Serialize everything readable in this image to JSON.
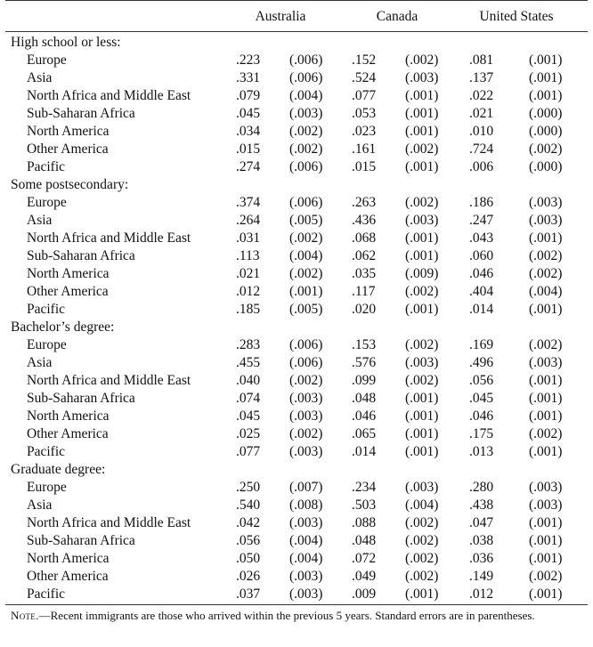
{
  "columns": [
    "Australia",
    "Canada",
    "United States"
  ],
  "groups": [
    {
      "title": "High school or less:",
      "rows": [
        {
          "region": "Europe",
          "values": [
            ".223",
            "(.006)",
            ".152",
            "(.002)",
            ".081",
            "(.001)"
          ]
        },
        {
          "region": "Asia",
          "values": [
            ".331",
            "(.006)",
            ".524",
            "(.003)",
            ".137",
            "(.001)"
          ]
        },
        {
          "region": "North Africa and Middle East",
          "values": [
            ".079",
            "(.004)",
            ".077",
            "(.001)",
            ".022",
            "(.001)"
          ]
        },
        {
          "region": "Sub-Saharan Africa",
          "values": [
            ".045",
            "(.003)",
            ".053",
            "(.001)",
            ".021",
            "(.000)"
          ]
        },
        {
          "region": "North America",
          "values": [
            ".034",
            "(.002)",
            ".023",
            "(.001)",
            ".010",
            "(.000)"
          ]
        },
        {
          "region": "Other America",
          "values": [
            ".015",
            "(.002)",
            ".161",
            "(.002)",
            ".724",
            "(.002)"
          ]
        },
        {
          "region": "Pacific",
          "values": [
            ".274",
            "(.006)",
            ".015",
            "(.001)",
            ".006",
            "(.000)"
          ]
        }
      ]
    },
    {
      "title": "Some postsecondary:",
      "rows": [
        {
          "region": "Europe",
          "values": [
            ".374",
            "(.006)",
            ".263",
            "(.002)",
            ".186",
            "(.003)"
          ]
        },
        {
          "region": "Asia",
          "values": [
            ".264",
            "(.005)",
            ".436",
            "(.003)",
            ".247",
            "(.003)"
          ]
        },
        {
          "region": "North Africa and Middle East",
          "values": [
            ".031",
            "(.002)",
            ".068",
            "(.001)",
            ".043",
            "(.001)"
          ]
        },
        {
          "region": "Sub-Saharan Africa",
          "values": [
            ".113",
            "(.004)",
            ".062",
            "(.001)",
            ".060",
            "(.002)"
          ]
        },
        {
          "region": "North America",
          "values": [
            ".021",
            "(.002)",
            ".035",
            "(.009)",
            ".046",
            "(.002)"
          ]
        },
        {
          "region": "Other America",
          "values": [
            ".012",
            "(.001)",
            ".117",
            "(.002)",
            ".404",
            "(.004)"
          ]
        },
        {
          "region": "Pacific",
          "values": [
            ".185",
            "(.005)",
            ".020",
            "(.001)",
            ".014",
            "(.001)"
          ]
        }
      ]
    },
    {
      "title": "Bachelor’s degree:",
      "rows": [
        {
          "region": "Europe",
          "values": [
            ".283",
            "(.006)",
            ".153",
            "(.002)",
            ".169",
            "(.002)"
          ]
        },
        {
          "region": "Asia",
          "values": [
            ".455",
            "(.006)",
            ".576",
            "(.003)",
            ".496",
            "(.003)"
          ]
        },
        {
          "region": "North Africa and Middle East",
          "values": [
            ".040",
            "(.002)",
            ".099",
            "(.002)",
            ".056",
            "(.001)"
          ]
        },
        {
          "region": "Sub-Saharan Africa",
          "values": [
            ".074",
            "(.003)",
            ".048",
            "(.001)",
            ".045",
            "(.001)"
          ]
        },
        {
          "region": "North America",
          "values": [
            ".045",
            "(.003)",
            ".046",
            "(.001)",
            ".046",
            "(.001)"
          ]
        },
        {
          "region": "Other America",
          "values": [
            ".025",
            "(.002)",
            ".065",
            "(.001)",
            ".175",
            "(.002)"
          ]
        },
        {
          "region": "Pacific",
          "values": [
            ".077",
            "(.003)",
            ".014",
            "(.001)",
            ".013",
            "(.001)"
          ]
        }
      ]
    },
    {
      "title": "Graduate degree:",
      "rows": [
        {
          "region": "Europe",
          "values": [
            ".250",
            "(.007)",
            ".234",
            "(.003)",
            ".280",
            "(.003)"
          ]
        },
        {
          "region": "Asia",
          "values": [
            ".540",
            "(.008)",
            ".503",
            "(.004)",
            ".438",
            "(.003)"
          ]
        },
        {
          "region": "North Africa and Middle East",
          "values": [
            ".042",
            "(.003)",
            ".088",
            "(.002)",
            ".047",
            "(.001)"
          ]
        },
        {
          "region": "Sub-Saharan Africa",
          "values": [
            ".056",
            "(.004)",
            ".048",
            "(.002)",
            ".038",
            "(.001)"
          ]
        },
        {
          "region": "North America",
          "values": [
            ".050",
            "(.004)",
            ".072",
            "(.002)",
            ".036",
            "(.001)"
          ]
        },
        {
          "region": "Other America",
          "values": [
            ".026",
            "(.003)",
            ".049",
            "(.002)",
            ".149",
            "(.002)"
          ]
        },
        {
          "region": "Pacific",
          "values": [
            ".037",
            "(.003)",
            ".009",
            "(.001)",
            ".012",
            "(.001)"
          ]
        }
      ]
    }
  ],
  "note": {
    "label": "Note.",
    "text": "—Recent immigrants are those who arrived within the previous 5 years. Standard errors are in parentheses."
  }
}
